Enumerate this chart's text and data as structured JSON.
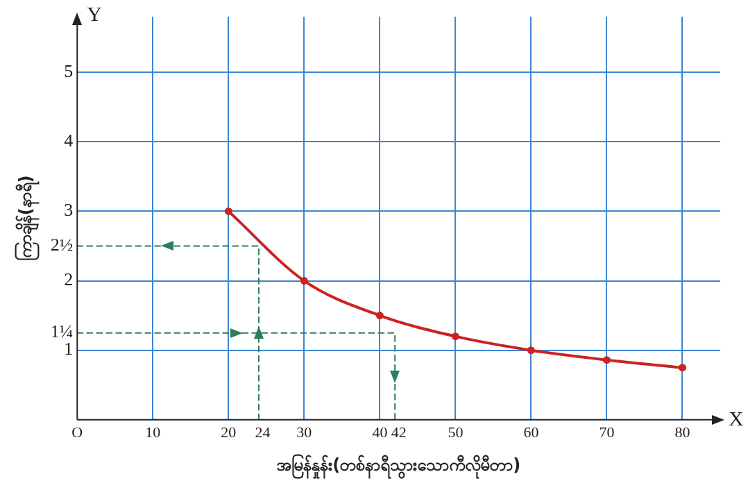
{
  "chart_data": {
    "type": "line",
    "xlabel": "အမြန်နှုန်း(တစ်နာရီသွားသောကီလိုမီတာ)",
    "ylabel": "ကြာချိန်(နာရီ)",
    "xlim": [
      0,
      85
    ],
    "ylim": [
      0,
      5.8
    ],
    "xticks": [
      {
        "value": 0,
        "label": "O"
      },
      10,
      20,
      {
        "value": 24,
        "label": "24"
      },
      30,
      40,
      {
        "value": 42,
        "label": "42"
      },
      50,
      60,
      70,
      80
    ],
    "yticks": [
      1,
      {
        "value": 1.25,
        "label": "1¼"
      },
      2,
      {
        "value": 2.5,
        "label": "2½"
      },
      3,
      4,
      5
    ],
    "grid": true,
    "legend": false,
    "series": [
      {
        "color": "#cc2222",
        "x": [
          20,
          30,
          40,
          50,
          60,
          70,
          80
        ],
        "values": [
          3,
          2,
          1.5,
          1.2,
          1,
          0.86,
          0.75
        ],
        "marker": "circle",
        "line_style": "solid"
      },
      {
        "color": "#2e7d5b",
        "x": [
          24,
          24,
          0
        ],
        "values": [
          0,
          2.5,
          2.5
        ],
        "marker": "none",
        "line_style": "dashed"
      },
      {
        "color": "#2e7d5b",
        "x": [
          0,
          42,
          42
        ],
        "values": [
          1.25,
          1.25,
          0
        ],
        "marker": "none",
        "line_style": "dashed"
      }
    ],
    "annotations": [
      "X",
      "Y"
    ]
  }
}
